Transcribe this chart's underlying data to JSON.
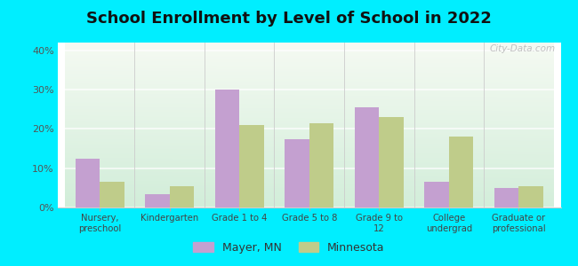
{
  "title": "School Enrollment by Level of School in 2022",
  "categories": [
    "Nursery,\npreschool",
    "Kindergarten",
    "Grade 1 to 4",
    "Grade 5 to 8",
    "Grade 9 to\n12",
    "College\nundergrad",
    "Graduate or\nprofessional"
  ],
  "mayer_values": [
    12.5,
    3.5,
    30.0,
    17.5,
    25.5,
    6.5,
    5.0
  ],
  "minnesota_values": [
    6.5,
    5.5,
    21.0,
    21.5,
    23.0,
    18.0,
    5.5
  ],
  "mayer_color": "#C4A0D0",
  "minnesota_color": "#BFCC8A",
  "ylim": [
    0,
    42
  ],
  "yticks": [
    0,
    10,
    20,
    30,
    40
  ],
  "ytick_labels": [
    "0%",
    "10%",
    "20%",
    "30%",
    "40%"
  ],
  "background_outer": "#00EEFF",
  "watermark": "City-Data.com",
  "legend_mayer": "Mayer, MN",
  "legend_minnesota": "Minnesota",
  "title_fontsize": 13,
  "bar_width": 0.35,
  "figsize": [
    6.5,
    3.0
  ],
  "dpi": 100,
  "bg_top_color": "#e8f5e4",
  "bg_bottom_color": "#d0edda",
  "bg_right_color": "#f5f5f0",
  "grid_color": "#e0e0d8",
  "spine_color": "#cccccc",
  "tick_color": "#666666"
}
